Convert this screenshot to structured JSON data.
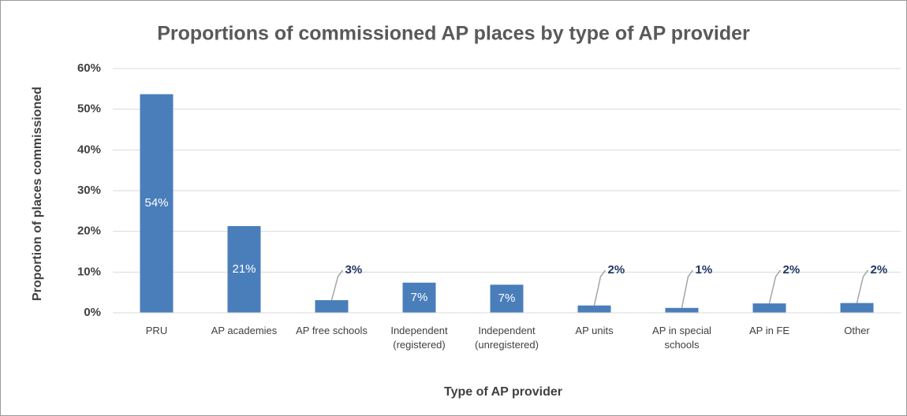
{
  "chart_data": {
    "type": "bar",
    "title": "Proportions of commissioned AP places by type of AP provider",
    "x_label": "Type of AP provider",
    "y_label": "Proportion of places commissioned",
    "categories": [
      "PRU",
      "AP academies",
      "AP free schools",
      "Independent (registered)",
      "Independent (unregistered)",
      "AP units",
      "AP in special schools",
      "AP in FE",
      "Other"
    ],
    "values": [
      53.7,
      21.3,
      3.1,
      7.4,
      6.9,
      1.8,
      1.2,
      2.3,
      2.4
    ],
    "value_labels": [
      "54%",
      "21%",
      "3%",
      "7%",
      "7%",
      "2%",
      "1%",
      "2%",
      "2%"
    ],
    "color": "#4a7ebb",
    "ylim": [
      0,
      60
    ],
    "yticks": [
      {
        "value": 0,
        "label": "0%"
      },
      {
        "value": 10,
        "label": "10%"
      },
      {
        "value": 20,
        "label": "20%"
      },
      {
        "value": 30,
        "label": "30%"
      },
      {
        "value": 40,
        "label": "40%"
      },
      {
        "value": 50,
        "label": "50%"
      },
      {
        "value": 60,
        "label": "60%"
      }
    ],
    "grid": true
  }
}
